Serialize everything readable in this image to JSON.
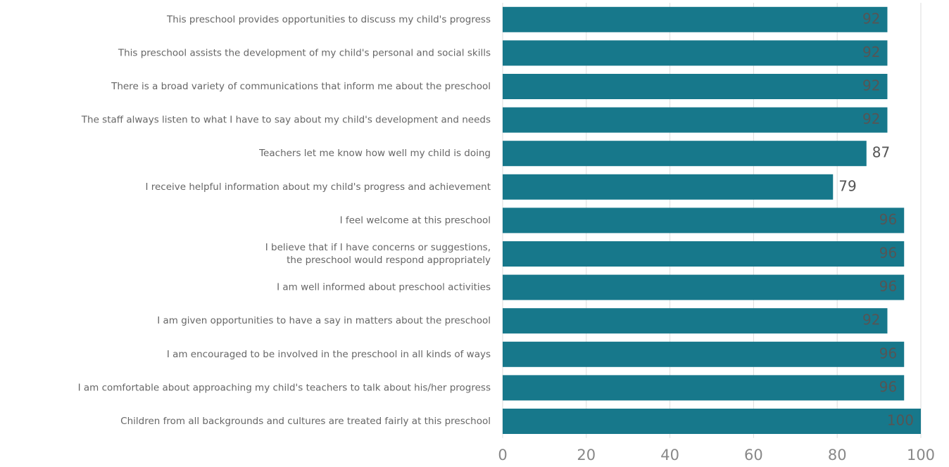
{
  "chart_data": {
    "type": "barh",
    "categories": [
      "This preschool provides opportunities to discuss my child's progress",
      "This preschool assists the development of my child's personal and social skills",
      "There is a broad variety of communications that inform me about the preschool",
      "The staff always listen to what I have to say about my child's development and needs",
      "Teachers let me know how well my child is doing",
      "I receive helpful information about my child's progress and achievement",
      "I feel welcome at this preschool",
      "I believe that if I have concerns or suggestions,\nthe preschool would respond appropriately",
      "I am well informed about preschool activities",
      "I am given opportunities to have a say in matters about the preschool",
      "I am encouraged to be involved in the preschool in all kinds of ways",
      "I am comfortable about approaching my child's teachers to talk about his/her progress",
      "Children from all backgrounds and cultures are treated fairly at this preschool"
    ],
    "values": [
      92,
      92,
      92,
      92,
      87,
      79,
      96,
      96,
      96,
      92,
      96,
      96,
      100
    ],
    "color": "#17788b",
    "xlim": [
      0,
      100
    ],
    "xticks": [
      0,
      20,
      40,
      60,
      80,
      100
    ],
    "grid": true
  }
}
